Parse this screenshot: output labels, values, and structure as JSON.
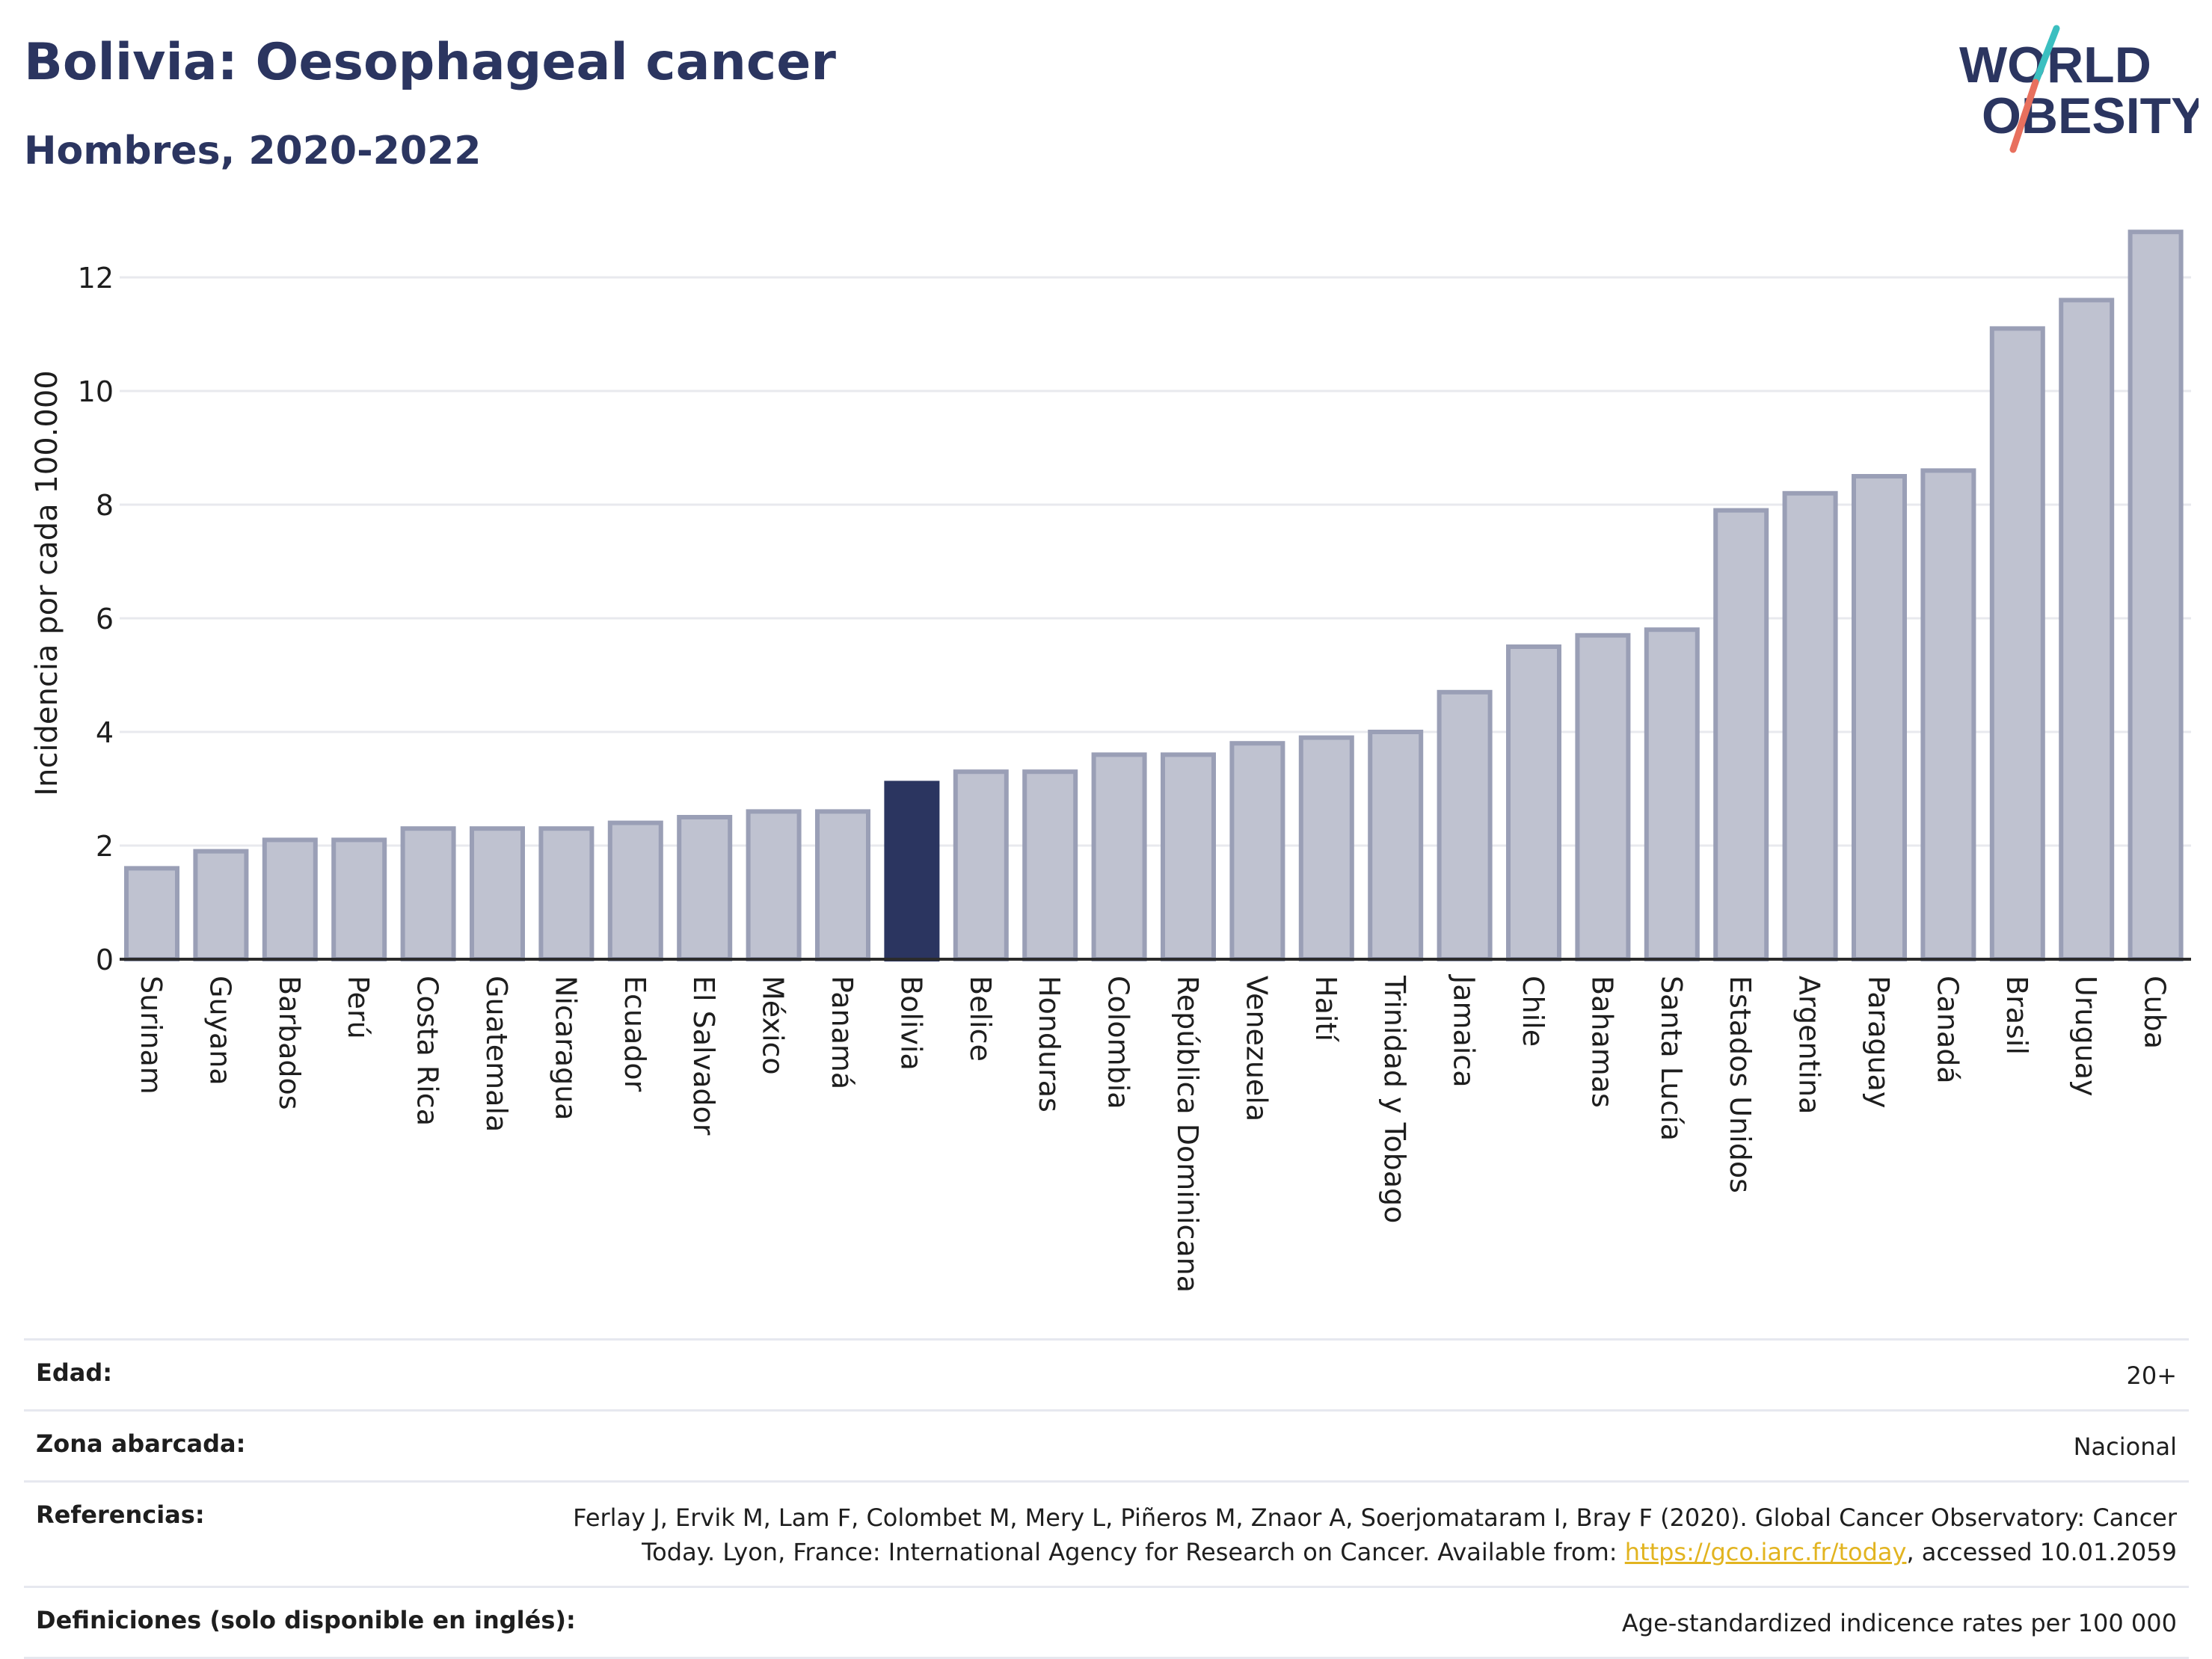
{
  "header": {
    "title": "Bolivia: Oesophageal cancer",
    "subtitle": "Hombres, 2020-2022"
  },
  "logo": {
    "line1": "WORLD",
    "line2": "OBESITY",
    "colors": {
      "text": "#2b3560",
      "slash_top": "#3bbfc0",
      "slash_bottom": "#e8705e"
    }
  },
  "chart_data": {
    "type": "bar",
    "ylabel": "Incidencia por cada 100.000",
    "xlabel": "",
    "ylim": [
      0,
      13
    ],
    "yticks": [
      0,
      2,
      4,
      6,
      8,
      10,
      12
    ],
    "grid": true,
    "highlight": "Bolivia",
    "colors": {
      "bar": "#bfc2d0",
      "bar_edge": "#9a9fb6",
      "highlight": "#2b3560",
      "grid": "#e8e9ee",
      "axis": "#2b2b2b"
    },
    "categories": [
      "Surinam",
      "Guyana",
      "Barbados",
      "Perú",
      "Costa Rica",
      "Guatemala",
      "Nicaragua",
      "Ecuador",
      "El Salvador",
      "México",
      "Panamá",
      "Bolivia",
      "Belice",
      "Honduras",
      "Colombia",
      "República Dominicana",
      "Venezuela",
      "Haití",
      "Trinidad y Tobago",
      "Jamaica",
      "Chile",
      "Bahamas",
      "Santa Lucía",
      "Estados Unidos",
      "Argentina",
      "Paraguay",
      "Canadá",
      "Brasil",
      "Uruguay",
      "Cuba"
    ],
    "values": [
      1.6,
      1.9,
      2.1,
      2.1,
      2.3,
      2.3,
      2.3,
      2.4,
      2.5,
      2.6,
      2.6,
      3.1,
      3.3,
      3.3,
      3.6,
      3.6,
      3.8,
      3.9,
      4.0,
      4.7,
      5.5,
      5.7,
      5.8,
      7.9,
      8.2,
      8.5,
      8.6,
      11.1,
      11.6,
      12.8
    ]
  },
  "info": {
    "edad_label": "Edad:",
    "edad_value": "20+",
    "zona_label": "Zona abarcada:",
    "zona_value": "Nacional",
    "ref_label": "Referencias:",
    "ref_line1": "Ferlay J, Ervik M, Lam F, Colombet M, Mery L, Piñeros M, Znaor A, Soerjomataram I, Bray F (2020). Global Cancer Observatory: Cancer",
    "ref_line2_before": "Today. Lyon, France: International Agency for Research on Cancer. Available from: ",
    "ref_link": "https://gco.iarc.fr/today",
    "ref_line2_after": ", accessed 10.01.2059",
    "def_label": "Definiciones (solo disponible en inglés):",
    "def_value": "Age-standardized indicence rates per 100 000"
  }
}
